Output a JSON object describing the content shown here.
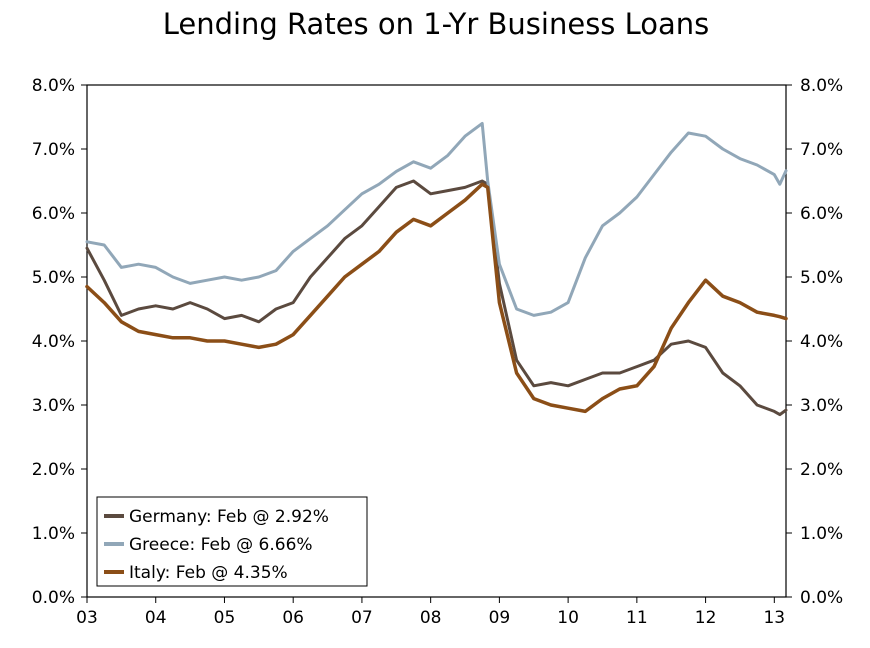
{
  "chart_data": {
    "type": "line",
    "title": "Lending Rates on 1-Yr Business Loans",
    "xlabel": "",
    "ylabel": "",
    "x_ticks": [
      "03",
      "04",
      "05",
      "06",
      "07",
      "08",
      "09",
      "10",
      "11",
      "12",
      "13"
    ],
    "x_range": [
      2003,
      2013.17
    ],
    "y_ticks_left": [
      "0.0%",
      "1.0%",
      "2.0%",
      "3.0%",
      "4.0%",
      "5.0%",
      "6.0%",
      "7.0%",
      "8.0%"
    ],
    "y_ticks_right": [
      "0.0%",
      "1.0%",
      "2.0%",
      "3.0%",
      "4.0%",
      "5.0%",
      "6.0%",
      "7.0%",
      "8.0%"
    ],
    "ylim": [
      0,
      8
    ],
    "grid": false,
    "legend_position": "bottom-left",
    "series": [
      {
        "name": "Germany: Feb @ 2.92%",
        "color": "#5b4a3f",
        "x": [
          2003.0,
          2003.25,
          2003.5,
          2003.75,
          2004.0,
          2004.25,
          2004.5,
          2004.75,
          2005.0,
          2005.25,
          2005.5,
          2005.75,
          2006.0,
          2006.25,
          2006.5,
          2006.75,
          2007.0,
          2007.25,
          2007.5,
          2007.75,
          2008.0,
          2008.25,
          2008.5,
          2008.75,
          2008.83,
          2009.0,
          2009.25,
          2009.5,
          2009.75,
          2010.0,
          2010.25,
          2010.5,
          2010.75,
          2011.0,
          2011.25,
          2011.5,
          2011.75,
          2012.0,
          2012.25,
          2012.5,
          2012.75,
          2013.0,
          2013.08,
          2013.17
        ],
        "y": [
          5.45,
          4.95,
          4.4,
          4.5,
          4.55,
          4.5,
          4.6,
          4.5,
          4.35,
          4.4,
          4.3,
          4.5,
          4.6,
          5.0,
          5.3,
          5.6,
          5.8,
          6.1,
          6.4,
          6.5,
          6.3,
          6.35,
          6.4,
          6.5,
          6.45,
          4.9,
          3.7,
          3.3,
          3.35,
          3.3,
          3.4,
          3.5,
          3.5,
          3.6,
          3.7,
          3.95,
          4.0,
          3.9,
          3.5,
          3.3,
          3.0,
          2.9,
          2.85,
          2.92
        ]
      },
      {
        "name": "Greece: Feb @ 6.66%",
        "color": "#91a7b8",
        "x": [
          2003.0,
          2003.25,
          2003.5,
          2003.75,
          2004.0,
          2004.25,
          2004.5,
          2004.75,
          2005.0,
          2005.25,
          2005.5,
          2005.75,
          2006.0,
          2006.25,
          2006.5,
          2006.75,
          2007.0,
          2007.25,
          2007.5,
          2007.75,
          2008.0,
          2008.25,
          2008.5,
          2008.75,
          2008.83,
          2009.0,
          2009.25,
          2009.5,
          2009.75,
          2010.0,
          2010.25,
          2010.5,
          2010.75,
          2011.0,
          2011.25,
          2011.5,
          2011.75,
          2012.0,
          2012.25,
          2012.5,
          2012.75,
          2013.0,
          2013.08,
          2013.17
        ],
        "y": [
          5.55,
          5.5,
          5.15,
          5.2,
          5.15,
          5.0,
          4.9,
          4.95,
          5.0,
          4.95,
          5.0,
          5.1,
          5.4,
          5.6,
          5.8,
          6.05,
          6.3,
          6.45,
          6.65,
          6.8,
          6.7,
          6.9,
          7.2,
          7.4,
          6.5,
          5.2,
          4.5,
          4.4,
          4.45,
          4.6,
          5.3,
          5.8,
          6.0,
          6.25,
          6.6,
          6.95,
          7.25,
          7.2,
          7.0,
          6.85,
          6.75,
          6.6,
          6.45,
          6.66
        ]
      },
      {
        "name": "Italy: Feb @ 4.35%",
        "color": "#8b4e17",
        "x": [
          2003.0,
          2003.25,
          2003.5,
          2003.75,
          2004.0,
          2004.25,
          2004.5,
          2004.75,
          2005.0,
          2005.25,
          2005.5,
          2005.75,
          2006.0,
          2006.25,
          2006.5,
          2006.75,
          2007.0,
          2007.25,
          2007.5,
          2007.75,
          2008.0,
          2008.25,
          2008.5,
          2008.75,
          2008.83,
          2009.0,
          2009.25,
          2009.5,
          2009.75,
          2010.0,
          2010.25,
          2010.5,
          2010.75,
          2011.0,
          2011.25,
          2011.5,
          2011.75,
          2012.0,
          2012.25,
          2012.5,
          2012.75,
          2013.0,
          2013.08,
          2013.17
        ],
        "y": [
          4.85,
          4.6,
          4.3,
          4.15,
          4.1,
          4.05,
          4.05,
          4.0,
          4.0,
          3.95,
          3.9,
          3.95,
          4.1,
          4.4,
          4.7,
          5.0,
          5.2,
          5.4,
          5.7,
          5.9,
          5.8,
          6.0,
          6.2,
          6.45,
          6.4,
          4.6,
          3.5,
          3.1,
          3.0,
          2.95,
          2.9,
          3.1,
          3.25,
          3.3,
          3.6,
          4.2,
          4.6,
          4.95,
          4.7,
          4.6,
          4.45,
          4.4,
          4.38,
          4.35
        ]
      }
    ]
  }
}
